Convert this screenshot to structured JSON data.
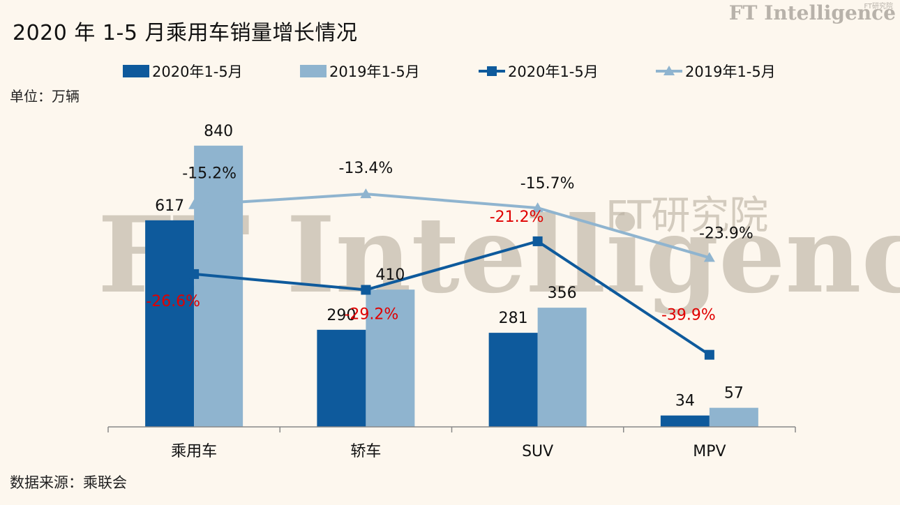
{
  "title": "2020 年 1-5 月乘用车销量增长情况",
  "unit": "单位：万辆",
  "source": "数据来源：乘联会",
  "brand": {
    "logo_text": "FT Intelligence",
    "logo_sub": "FT研究院",
    "watermark_main": "FT Intelligence",
    "watermark_sub": "FT研究院"
  },
  "colors": {
    "bar_2020": "#0e5a9c",
    "bar_2019": "#8fb4cf",
    "line_2020": "#0e5a9c",
    "line_2019": "#8fb4cf",
    "negative_label": "#e00000",
    "background": "#fdf7ee"
  },
  "chart_data": {
    "type": "bar",
    "categories": [
      "乘用车",
      "轿车",
      "SUV",
      "MPV"
    ],
    "series": [
      {
        "name": "2020年1-5月",
        "type": "bar",
        "values": [
          617,
          290,
          281,
          34
        ]
      },
      {
        "name": "2019年1-5月",
        "type": "bar",
        "values": [
          840,
          410,
          356,
          57
        ]
      },
      {
        "name": "2020年1-5月",
        "type": "line",
        "marker": "square",
        "values": [
          -26.6,
          -29.2,
          -21.2,
          -39.9
        ],
        "labels": [
          "-26.6%",
          "-29.2%",
          "-21.2%",
          "-39.9%"
        ]
      },
      {
        "name": "2019年1-5月",
        "type": "line",
        "marker": "triangle",
        "values": [
          -15.2,
          -13.4,
          -15.7,
          -23.9
        ],
        "labels": [
          "-15.2%",
          "-13.4%",
          "-15.7%",
          "-23.9%"
        ]
      }
    ],
    "ylim": [
      0,
      900
    ],
    "secondary_ylim": [
      -55,
      -5
    ],
    "legend": "top",
    "grid": false
  }
}
